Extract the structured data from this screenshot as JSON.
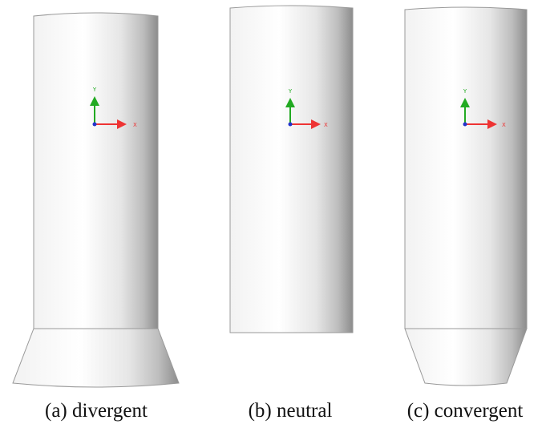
{
  "panels": [
    {
      "caption": "(a) divergent",
      "axes": {
        "y": "Y",
        "x": "X"
      }
    },
    {
      "caption": "(b) neutral",
      "axes": {
        "y": "Y",
        "x": "X"
      }
    },
    {
      "caption": "(c) convergent",
      "axes": {
        "y": "Y",
        "x": "X"
      }
    }
  ]
}
